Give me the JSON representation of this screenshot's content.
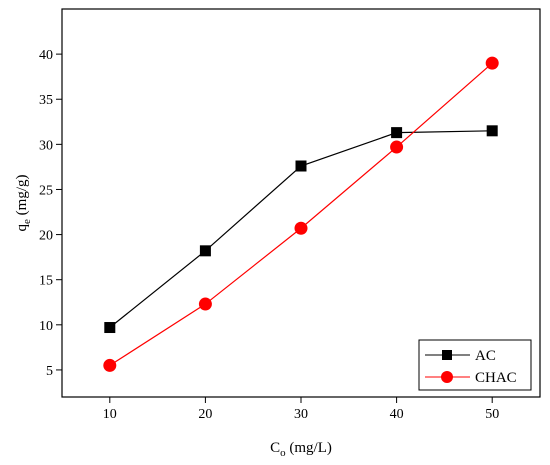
{
  "chart_data": {
    "type": "line",
    "x": [
      10,
      20,
      30,
      40,
      50
    ],
    "xlim": [
      5,
      55
    ],
    "ylim": [
      2,
      45
    ],
    "xticks": [
      10,
      20,
      30,
      40,
      50
    ],
    "yticks": [
      5,
      10,
      15,
      20,
      25,
      30,
      35,
      40
    ],
    "xlabel": {
      "main": "C",
      "sub": "o",
      "rest": " (mg/L)"
    },
    "ylabel": {
      "main": "q",
      "sub": "e",
      "rest": " (mg/g)"
    },
    "grid": false,
    "legend_position": "bottom-right",
    "series": [
      {
        "name": "AC",
        "values": [
          9.7,
          18.2,
          27.6,
          31.3,
          31.5
        ],
        "color": "#000000",
        "marker": "square"
      },
      {
        "name": "CHAC",
        "values": [
          5.5,
          12.3,
          20.7,
          29.7,
          39.0
        ],
        "color": "#ff0000",
        "marker": "circle"
      }
    ]
  }
}
